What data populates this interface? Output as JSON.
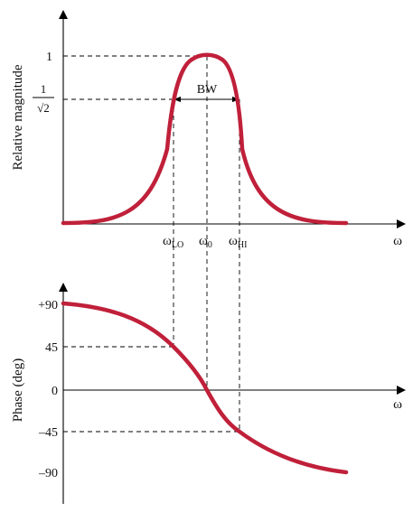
{
  "curve_color": "#c0203a",
  "magnitude_plot": {
    "ylabel": "Relative magnitude",
    "xlabel": "ω",
    "tick_one": "1",
    "tick_inv_sqrt2_num": "1",
    "tick_inv_sqrt2_den": "√2",
    "bw_label": "BW",
    "omega_lo": {
      "sym": "ω",
      "sub": "LO"
    },
    "omega_0": {
      "sym": "ω",
      "sub": "0"
    },
    "omega_hi": {
      "sym": "ω",
      "sub": "HI"
    }
  },
  "phase_plot": {
    "ylabel": "Phase (deg)",
    "xlabel": "ω",
    "ticks": [
      "+90",
      "45",
      "0",
      "–45",
      "–90"
    ]
  }
}
